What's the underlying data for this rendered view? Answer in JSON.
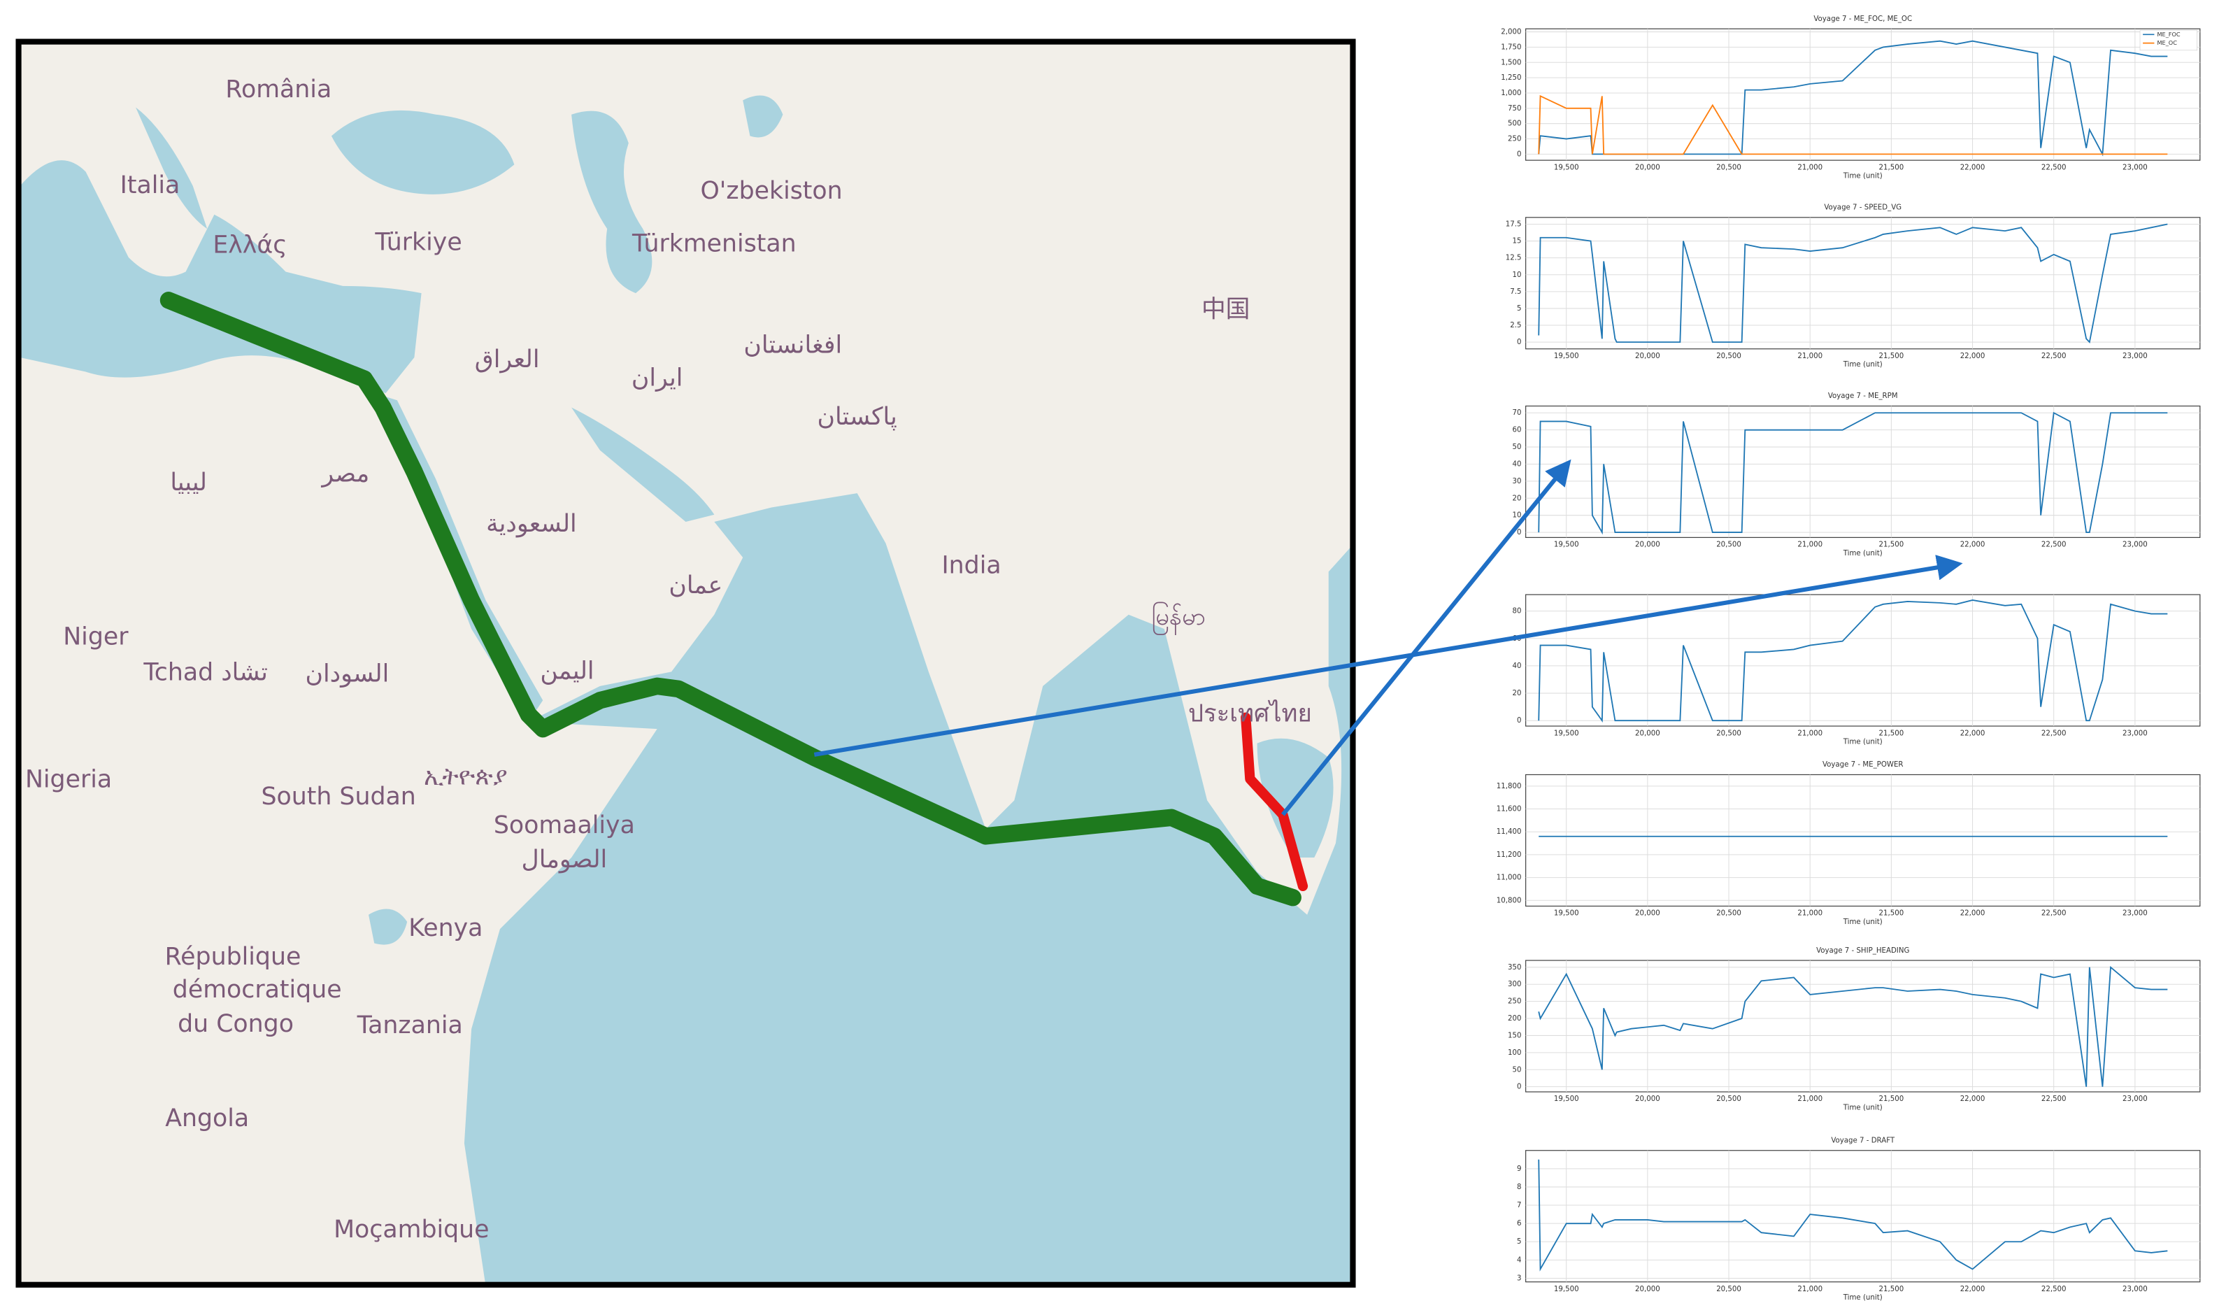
{
  "map": {
    "labels": [
      "România",
      "Italia",
      "Ελλάς",
      "Türkiye",
      "Türkmenistan",
      "O'zbekiston",
      "العراق",
      "ایران",
      "افغانستان",
      "پاکستان",
      "中国",
      "ليبيا",
      "مصر",
      "السعودية",
      "عمان",
      "India",
      "မြန်မာ",
      "Niger",
      "Tchad تشاد",
      "السودان",
      "اليمن",
      "ประเทศไทย",
      "Nigeria",
      "South Sudan",
      "ኢትዮጵያ",
      "Soomaaliya",
      "الصومال",
      "Kenya",
      "République",
      "démocratique",
      "du Congo",
      "Tanzania",
      "Angola",
      "Moçambique"
    ]
  },
  "chart_data": [
    {
      "type": "line",
      "title": "Voyage 7 - ME_FOC, ME_OC",
      "x_label": "Time (unit)",
      "legend": "upper right",
      "grid": true,
      "x": [
        19330,
        19340,
        19500,
        19650,
        19660,
        19720,
        19730,
        19800,
        19810,
        19900,
        20000,
        20100,
        20200,
        20220,
        20400,
        20580,
        20600,
        20700,
        20900,
        21000,
        21200,
        21400,
        21450,
        21600,
        21800,
        21900,
        22000,
        22200,
        22300,
        22400,
        22420,
        22500,
        22600,
        22700,
        22720,
        22800,
        22850,
        23000,
        23100,
        23200
      ],
      "series": [
        {
          "name": "ME_FOC",
          "color": "#1f77b4",
          "values": [
            0,
            300,
            250,
            300,
            0,
            0,
            0,
            0,
            0,
            0,
            0,
            0,
            0,
            0,
            0,
            0,
            1050,
            1050,
            1100,
            1150,
            1200,
            1700,
            1750,
            1800,
            1850,
            1800,
            1850,
            1750,
            1700,
            1650,
            100,
            1600,
            1500,
            100,
            400,
            0,
            1700,
            1650,
            1600,
            1600
          ]
        },
        {
          "name": "ME_OC",
          "color": "#ff7f0e",
          "values": [
            0,
            950,
            750,
            750,
            0,
            950,
            0,
            0,
            0,
            0,
            0,
            0,
            0,
            0,
            800,
            0,
            0,
            0,
            0,
            0,
            0,
            0,
            0,
            0,
            0,
            0,
            0,
            0,
            0,
            0,
            0,
            0,
            0,
            0,
            0,
            0,
            0,
            0,
            0,
            0
          ]
        }
      ],
      "xlim": [
        19250,
        23400
      ],
      "xticks": [
        {
          "value": 19500,
          "label": "19,500"
        },
        {
          "value": 20000,
          "label": "20,000"
        },
        {
          "value": 20500,
          "label": "20,500"
        },
        {
          "value": 21000,
          "label": "21,000"
        },
        {
          "value": 21500,
          "label": "21,500"
        },
        {
          "value": 22000,
          "label": "22,000"
        },
        {
          "value": 22500,
          "label": "22,500"
        },
        {
          "value": 23000,
          "label": "23,000"
        }
      ],
      "ylim": [
        -100,
        2050
      ],
      "yticks": [
        0,
        250,
        500,
        750,
        {
          "value": 1000,
          "label": "1,000"
        },
        {
          "value": 1250,
          "label": "1,250"
        },
        {
          "value": 1500,
          "label": "1,500"
        },
        {
          "value": 1750,
          "label": "1,750"
        },
        {
          "value": 2000,
          "label": "2,000"
        }
      ]
    },
    {
      "type": "line",
      "title": "Voyage 7 - SPEED_VG",
      "x_label": "Time (unit)",
      "grid": true,
      "x": [
        19330,
        19340,
        19500,
        19650,
        19660,
        19720,
        19730,
        19800,
        19810,
        19900,
        20000,
        20100,
        20200,
        20220,
        20400,
        20580,
        20600,
        20700,
        20900,
        21000,
        21200,
        21400,
        21450,
        21600,
        21800,
        21900,
        22000,
        22200,
        22300,
        22400,
        22420,
        22500,
        22600,
        22700,
        22720,
        22800,
        22850,
        23000,
        23100,
        23200
      ],
      "series": [
        {
          "color": "#1f77b4",
          "values": [
            1,
            15.5,
            15.5,
            15,
            13,
            0.5,
            12,
            0.5,
            0,
            0,
            0,
            0,
            0,
            15,
            0,
            0,
            14.5,
            14,
            13.8,
            13.5,
            14,
            15.5,
            16,
            16.5,
            17,
            16,
            17,
            16.5,
            17,
            14,
            12,
            13,
            12,
            0.5,
            0,
            10,
            16,
            16.5,
            17,
            17.5
          ]
        }
      ],
      "xlim": [
        19250,
        23400
      ],
      "xticks": [
        {
          "value": 19500,
          "label": "19,500"
        },
        {
          "value": 20000,
          "label": "20,000"
        },
        {
          "value": 20500,
          "label": "20,500"
        },
        {
          "value": 21000,
          "label": "21,000"
        },
        {
          "value": 21500,
          "label": "21,500"
        },
        {
          "value": 22000,
          "label": "22,000"
        },
        {
          "value": 22500,
          "label": "22,500"
        },
        {
          "value": 23000,
          "label": "23,000"
        }
      ],
      "ylim": [
        -1,
        18.5
      ],
      "yticks": [
        0,
        2.5,
        5,
        7.5,
        10,
        12.5,
        15,
        17.5
      ]
    },
    {
      "type": "line",
      "title": "Voyage 7 - ME_RPM",
      "x_label": "Time (unit)",
      "grid": true,
      "x": [
        19330,
        19340,
        19500,
        19650,
        19660,
        19720,
        19730,
        19800,
        19810,
        19900,
        20000,
        20100,
        20200,
        20220,
        20400,
        20580,
        20600,
        20700,
        20900,
        21000,
        21200,
        21400,
        21450,
        21600,
        21800,
        21900,
        22000,
        22200,
        22300,
        22400,
        22420,
        22500,
        22600,
        22700,
        22720,
        22800,
        22850,
        23000,
        23100,
        23200
      ],
      "series": [
        {
          "color": "#1f77b4",
          "values": [
            0,
            65,
            65,
            62,
            10,
            0,
            40,
            0,
            0,
            0,
            0,
            0,
            0,
            65,
            0,
            0,
            60,
            60,
            60,
            60,
            60,
            70,
            70,
            70,
            70,
            70,
            70,
            70,
            70,
            65,
            10,
            70,
            65,
            0,
            0,
            40,
            70,
            70,
            70,
            70
          ]
        }
      ],
      "xlim": [
        19250,
        23400
      ],
      "xticks": [
        {
          "value": 19500,
          "label": "19,500"
        },
        {
          "value": 20000,
          "label": "20,000"
        },
        {
          "value": 20500,
          "label": "20,500"
        },
        {
          "value": 21000,
          "label": "21,000"
        },
        {
          "value": 21500,
          "label": "21,500"
        },
        {
          "value": 22000,
          "label": "22,000"
        },
        {
          "value": 22500,
          "label": "22,500"
        },
        {
          "value": 23000,
          "label": "23,000"
        }
      ],
      "ylim": [
        -3,
        74
      ],
      "yticks": [
        0,
        10,
        20,
        30,
        40,
        50,
        60,
        70
      ]
    },
    {
      "type": "line",
      "x_label": "Time (unit)",
      "grid": true,
      "x": [
        19330,
        19340,
        19500,
        19650,
        19660,
        19720,
        19730,
        19800,
        19810,
        19900,
        20000,
        20100,
        20200,
        20220,
        20400,
        20580,
        20600,
        20700,
        20900,
        21000,
        21200,
        21400,
        21450,
        21600,
        21800,
        21900,
        22000,
        22200,
        22300,
        22400,
        22420,
        22500,
        22600,
        22700,
        22720,
        22800,
        22850,
        23000,
        23100,
        23200
      ],
      "series": [
        {
          "color": "#1f77b4",
          "values": [
            0,
            55,
            55,
            52,
            10,
            0,
            50,
            0,
            0,
            0,
            0,
            0,
            0,
            55,
            0,
            0,
            50,
            50,
            52,
            55,
            58,
            83,
            85,
            87,
            86,
            85,
            88,
            84,
            85,
            60,
            10,
            70,
            65,
            0,
            0,
            30,
            85,
            80,
            78,
            78
          ]
        }
      ],
      "xlim": [
        19250,
        23400
      ],
      "xticks": [
        {
          "value": 19500,
          "label": "19,500"
        },
        {
          "value": 20000,
          "label": "20,000"
        },
        {
          "value": 20500,
          "label": "20,500"
        },
        {
          "value": 21000,
          "label": "21,000"
        },
        {
          "value": 21500,
          "label": "21,500"
        },
        {
          "value": 22000,
          "label": "22,000"
        },
        {
          "value": 22500,
          "label": "22,500"
        },
        {
          "value": 23000,
          "label": "23,000"
        }
      ],
      "ylim": [
        -4,
        92
      ],
      "yticks": [
        0,
        20,
        40,
        60,
        80
      ]
    },
    {
      "type": "line",
      "title": "Voyage 7 - ME_POWER",
      "x_label": "Time (unit)",
      "grid": true,
      "x": [
        19330,
        23200
      ],
      "series": [
        {
          "color": "#1f77b4",
          "values": [
            11360,
            11360
          ]
        }
      ],
      "xlim": [
        19250,
        23400
      ],
      "xticks": [
        {
          "value": 19500,
          "label": "19,500"
        },
        {
          "value": 20000,
          "label": "20,000"
        },
        {
          "value": 20500,
          "label": "20,500"
        },
        {
          "value": 21000,
          "label": "21,000"
        },
        {
          "value": 21500,
          "label": "21,500"
        },
        {
          "value": 22000,
          "label": "22,000"
        },
        {
          "value": 22500,
          "label": "22,500"
        },
        {
          "value": 23000,
          "label": "23,000"
        }
      ],
      "ylim": [
        10750,
        11900
      ],
      "yticks": [
        {
          "value": 10800,
          "label": "10,800"
        },
        {
          "value": 11000,
          "label": "11,000"
        },
        {
          "value": 11200,
          "label": "11,200"
        },
        {
          "value": 11400,
          "label": "11,400"
        },
        {
          "value": 11600,
          "label": "11,600"
        },
        {
          "value": 11800,
          "label": "11,800"
        }
      ]
    },
    {
      "type": "line",
      "title": "Voyage 7 - SHIP_HEADING",
      "x_label": "Time (unit)",
      "grid": true,
      "x": [
        19330,
        19340,
        19500,
        19650,
        19660,
        19720,
        19730,
        19800,
        19810,
        19900,
        20000,
        20100,
        20200,
        20220,
        20400,
        20580,
        20600,
        20700,
        20900,
        21000,
        21200,
        21400,
        21450,
        21600,
        21800,
        21900,
        22000,
        22200,
        22300,
        22400,
        22420,
        22500,
        22600,
        22700,
        22720,
        22800,
        22850,
        23000,
        23100,
        23200
      ],
      "series": [
        {
          "color": "#1f77b4",
          "values": [
            220,
            200,
            330,
            180,
            170,
            50,
            230,
            150,
            160,
            170,
            175,
            180,
            165,
            185,
            170,
            200,
            250,
            310,
            320,
            270,
            280,
            290,
            290,
            280,
            285,
            280,
            270,
            260,
            250,
            230,
            330,
            320,
            330,
            0,
            350,
            0,
            350,
            290,
            285,
            285
          ]
        }
      ],
      "xlim": [
        19250,
        23400
      ],
      "xticks": [
        {
          "value": 19500,
          "label": "19,500"
        },
        {
          "value": 20000,
          "label": "20,000"
        },
        {
          "value": 20500,
          "label": "20,500"
        },
        {
          "value": 21000,
          "label": "21,000"
        },
        {
          "value": 21500,
          "label": "21,500"
        },
        {
          "value": 22000,
          "label": "22,000"
        },
        {
          "value": 22500,
          "label": "22,500"
        },
        {
          "value": 23000,
          "label": "23,000"
        }
      ],
      "ylim": [
        -15,
        370
      ],
      "yticks": [
        0,
        50,
        100,
        150,
        200,
        250,
        300,
        350
      ]
    },
    {
      "type": "line",
      "title": "Voyage 7 - DRAFT",
      "x_label": "Time (unit)",
      "grid": true,
      "x": [
        19330,
        19340,
        19500,
        19650,
        19660,
        19720,
        19730,
        19800,
        19810,
        19900,
        20000,
        20100,
        20200,
        20220,
        20400,
        20580,
        20600,
        20700,
        20900,
        21000,
        21200,
        21400,
        21450,
        21600,
        21800,
        21900,
        22000,
        22200,
        22300,
        22400,
        22420,
        22500,
        22600,
        22700,
        22720,
        22800,
        22850,
        23000,
        23100,
        23200
      ],
      "series": [
        {
          "color": "#1f77b4",
          "values": [
            9.5,
            3.5,
            6,
            6,
            6.5,
            5.8,
            6,
            6.2,
            6.2,
            6.2,
            6.2,
            6.1,
            6.1,
            6.1,
            6.1,
            6.1,
            6.2,
            5.5,
            5.3,
            6.5,
            6.3,
            6,
            5.5,
            5.6,
            5,
            4,
            3.5,
            5,
            5,
            5.5,
            5.6,
            5.5,
            5.8,
            6,
            5.5,
            6.2,
            6.3,
            4.5,
            4.4,
            4.5
          ]
        }
      ],
      "xlim": [
        19250,
        23400
      ],
      "xticks": [
        {
          "value": 19500,
          "label": "19,500"
        },
        {
          "value": 20000,
          "label": "20,000"
        },
        {
          "value": 20500,
          "label": "20,500"
        },
        {
          "value": 21000,
          "label": "21,000"
        },
        {
          "value": 21500,
          "label": "21,500"
        },
        {
          "value": 22000,
          "label": "22,000"
        },
        {
          "value": 22500,
          "label": "22,500"
        },
        {
          "value": 23000,
          "label": "23,000"
        }
      ],
      "ylim": [
        2.8,
        10
      ],
      "yticks": [
        3,
        4,
        5,
        6,
        7,
        8,
        9
      ]
    }
  ]
}
